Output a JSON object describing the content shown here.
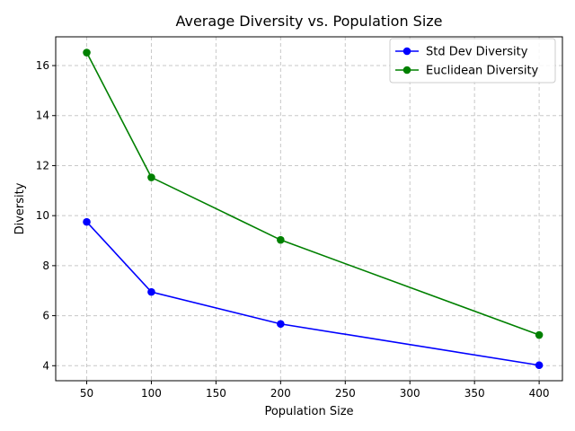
{
  "chart_data": {
    "type": "line",
    "title": "Average Diversity vs. Population Size",
    "xlabel": "Population Size",
    "ylabel": "Diversity",
    "x": [
      50,
      100,
      200,
      400
    ],
    "xlim": [
      26,
      418
    ],
    "ylim": [
      3.4,
      17.15
    ],
    "xticks": [
      50,
      100,
      150,
      200,
      250,
      300,
      350,
      400
    ],
    "yticks": [
      4,
      6,
      8,
      10,
      12,
      14,
      16
    ],
    "grid": true,
    "legend_position": "top-right",
    "series": [
      {
        "name": "Std Dev Diversity",
        "color": "#0000ff",
        "values": [
          9.75,
          6.95,
          5.67,
          4.02
        ]
      },
      {
        "name": "Euclidean Diversity",
        "color": "#008000",
        "values": [
          16.52,
          11.53,
          9.03,
          5.23
        ]
      }
    ]
  }
}
